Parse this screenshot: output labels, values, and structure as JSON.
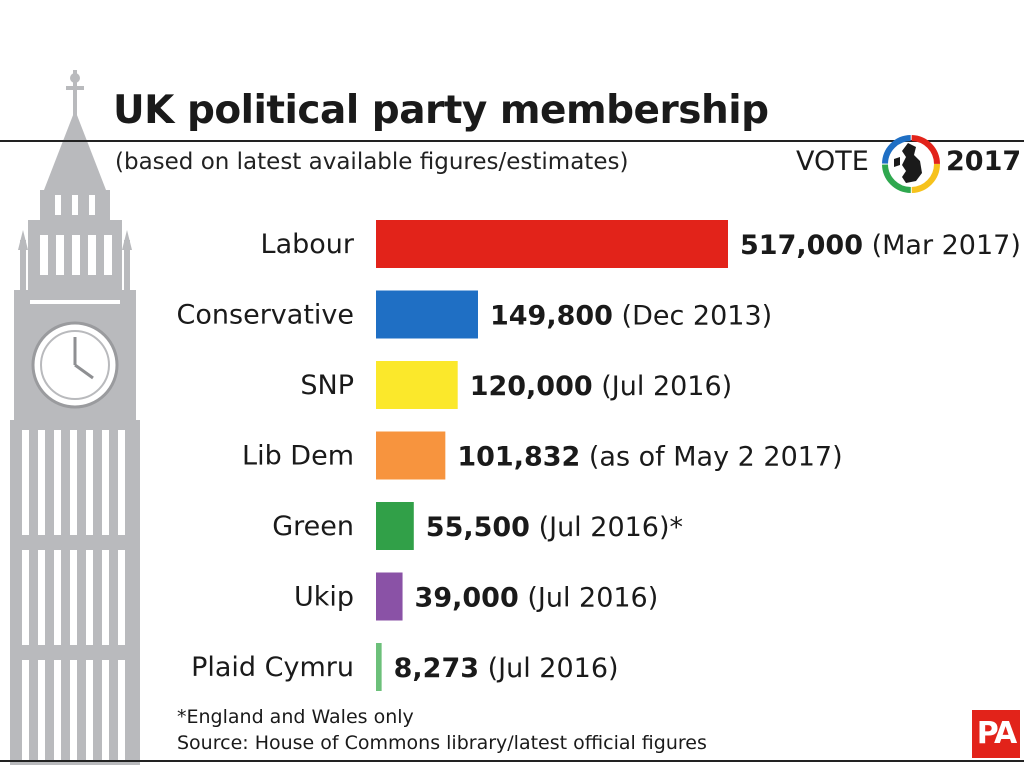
{
  "header": {
    "title": "UK political party membership",
    "subtitle": "(based on latest available figures/estimates)",
    "vote_word": "VOTE",
    "vote_year": "2017"
  },
  "colors": {
    "Labour": "#e2231a",
    "Conservative": "#1f6fc4",
    "SNP": "#fbe82b",
    "Lib Dem": "#f7943e",
    "Green": "#31a048",
    "Ukip": "#8a52a6",
    "Plaid Cymru": "#6cc07a",
    "tower": "#b9babd"
  },
  "chart_data": {
    "type": "bar",
    "orientation": "horizontal",
    "title": "UK political party membership",
    "subtitle": "(based on latest available figures/estimates)",
    "categories": [
      "Labour",
      "Conservative",
      "SNP",
      "Lib Dem",
      "Green",
      "Ukip",
      "Plaid Cymru"
    ],
    "values": [
      517000,
      149800,
      120000,
      101832,
      55500,
      39000,
      8273
    ],
    "value_labels": [
      "517,000",
      "149,800",
      "120,000",
      "101,832",
      "55,500",
      "39,000",
      "8,273"
    ],
    "date_labels": [
      "(Mar 2017)",
      "(Dec 2013)",
      "(Jul 2016)",
      "(as of May 2 2017)",
      "(Jul 2016)*",
      "(Jul 2016)",
      "(Jul 2016)"
    ],
    "xlim": [
      0,
      517000
    ],
    "grid": false,
    "legend": "none"
  },
  "footer": {
    "note": "*England and Wales only",
    "source": "Source: House of Commons library/latest official figures",
    "logo": "PA"
  }
}
